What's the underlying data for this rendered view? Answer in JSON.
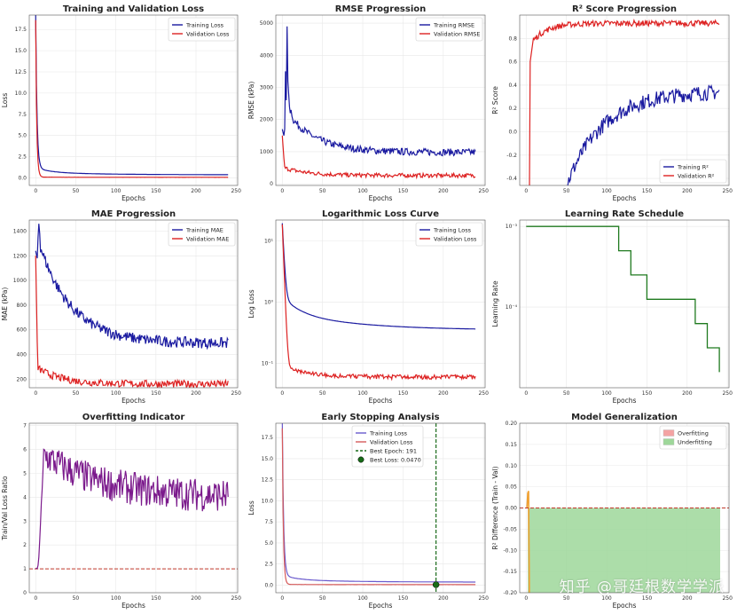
{
  "colors": {
    "train": "#1a1aa0",
    "val": "#dd2222",
    "purple": "#7b1a8c",
    "green": "#1f7a1f",
    "dashed_red": "#c0392b",
    "dashed_green": "#1a6b1a",
    "fill_green": "#9ed79a",
    "fill_red": "#f4a3a3",
    "orange": "#f0a030"
  },
  "watermark": "知乎 @哥廷根数学学派",
  "chart_data": [
    {
      "id": "loss",
      "type": "line",
      "title": "Training and Validation Loss",
      "xlabel": "Epochs",
      "ylabel": "Loss",
      "xlim": [
        -8,
        252
      ],
      "ylim": [
        -0.9,
        19.2
      ],
      "xticks": [
        0,
        50,
        100,
        150,
        200,
        250
      ],
      "yticks": [
        0.0,
        2.5,
        5.0,
        7.5,
        10.0,
        12.5,
        15.0,
        17.5
      ],
      "ytick_fmt": 1,
      "legend": "top-right",
      "series": [
        {
          "name": "Training Loss",
          "profile": "train_loss"
        },
        {
          "name": "Validation Loss",
          "profile": "val_loss"
        }
      ]
    },
    {
      "id": "rmse",
      "type": "line",
      "title": "RMSE Progression",
      "xlabel": "Epochs",
      "ylabel": "RMSE (kPa)",
      "xlim": [
        -8,
        252
      ],
      "ylim": [
        -50,
        5250
      ],
      "xticks": [
        0,
        50,
        100,
        150,
        200,
        250
      ],
      "yticks": [
        0,
        1000,
        2000,
        3000,
        4000,
        5000
      ],
      "ytick_fmt": 0,
      "legend": "top-right",
      "series": [
        {
          "name": "Training RMSE",
          "profile": "train_rmse"
        },
        {
          "name": "Validation RMSE",
          "profile": "val_rmse"
        }
      ]
    },
    {
      "id": "r2",
      "type": "line",
      "title": "R² Score Progression",
      "xlabel": "Epochs",
      "ylabel": "R² Score",
      "xlim": [
        -8,
        252
      ],
      "ylim": [
        -0.46,
        1.0
      ],
      "xticks": [
        0,
        50,
        100,
        150,
        200,
        250
      ],
      "yticks": [
        -0.4,
        -0.2,
        0.0,
        0.2,
        0.4,
        0.6,
        0.8
      ],
      "ytick_fmt": 1,
      "legend": "bottom-right",
      "series": [
        {
          "name": "Training R²",
          "profile": "train_r2"
        },
        {
          "name": "Validation R²",
          "profile": "val_r2"
        }
      ]
    },
    {
      "id": "mae",
      "type": "line",
      "title": "MAE Progression",
      "xlabel": "Epochs",
      "ylabel": "MAE (kPa)",
      "xlim": [
        -8,
        252
      ],
      "ylim": [
        130,
        1490
      ],
      "xticks": [
        0,
        50,
        100,
        150,
        200,
        250
      ],
      "yticks": [
        200,
        400,
        600,
        800,
        1000,
        1200,
        1400
      ],
      "ytick_fmt": 0,
      "legend": "top-right",
      "series": [
        {
          "name": "Training MAE",
          "profile": "train_mae"
        },
        {
          "name": "Validation MAE",
          "profile": "val_mae"
        }
      ]
    },
    {
      "id": "logloss",
      "type": "line",
      "title": "Logarithmic Loss Curve",
      "xlabel": "Epochs",
      "ylabel": "Log Loss",
      "xlim": [
        -8,
        252
      ],
      "ylim": [
        0.04,
        22
      ],
      "yscale": "log",
      "xticks": [
        0,
        50,
        100,
        150,
        200,
        250
      ],
      "ytick_labels": [
        "10⁻¹",
        "10⁰",
        "10¹"
      ],
      "legend": "top-right",
      "series": [
        {
          "name": "Training Loss",
          "profile": "train_loss"
        },
        {
          "name": "Validation Loss",
          "profile": "val_loss"
        }
      ]
    },
    {
      "id": "lr",
      "type": "line",
      "title": "Learning Rate Schedule",
      "xlabel": "Epochs",
      "ylabel": "Learning Rate",
      "xlim": [
        -8,
        252
      ],
      "ylim": [
        1e-05,
        0.0012
      ],
      "yscale": "log",
      "xticks": [
        0,
        50,
        100,
        150,
        200,
        250
      ],
      "ytick_labels": [
        "10⁻⁴",
        "10⁻³"
      ],
      "legend": "none",
      "series": [
        {
          "name": "",
          "steps": [
            [
              0,
              0.001
            ],
            [
              115,
              0.001
            ],
            [
              115,
              0.0005
            ],
            [
              130,
              0.0005
            ],
            [
              130,
              0.00025
            ],
            [
              150,
              0.00025
            ],
            [
              150,
              0.000125
            ],
            [
              210,
              0.000125
            ],
            [
              210,
              6.25e-05
            ],
            [
              225,
              6.25e-05
            ],
            [
              225,
              3.125e-05
            ],
            [
              240,
              3.125e-05
            ],
            [
              240,
              1.56e-05
            ]
          ]
        }
      ]
    },
    {
      "id": "overfit",
      "type": "line",
      "title": "Overfitting Indicator",
      "xlabel": "Epochs",
      "ylabel": "Train/Val Loss Ratio",
      "xlim": [
        -8,
        252
      ],
      "ylim": [
        0,
        7.1
      ],
      "xticks": [
        0,
        50,
        100,
        150,
        200,
        250
      ],
      "yticks": [
        0,
        1,
        2,
        3,
        4,
        5,
        6,
        7
      ],
      "ytick_fmt": 0,
      "legend": "none",
      "hline": 1,
      "series": [
        {
          "name": "",
          "profile": "ratio"
        }
      ]
    },
    {
      "id": "early",
      "type": "line",
      "title": "Early Stopping Analysis",
      "xlabel": "Epochs",
      "ylabel": "Loss",
      "xlim": [
        -8,
        252
      ],
      "ylim": [
        -0.9,
        19.2
      ],
      "xticks": [
        0,
        50,
        100,
        150,
        200,
        250
      ],
      "yticks": [
        0.0,
        2.5,
        5.0,
        7.5,
        10.0,
        12.5,
        15.0,
        17.5
      ],
      "ytick_fmt": 1,
      "legend": "top-center",
      "vline": 191,
      "best_point": [
        191,
        0.047
      ],
      "series": [
        {
          "name": "Training Loss",
          "profile": "train_loss"
        },
        {
          "name": "Validation Loss",
          "profile": "val_loss"
        }
      ],
      "extra_legend": [
        "Best Epoch: 191",
        "Best Loss: 0.0470"
      ]
    },
    {
      "id": "gen",
      "type": "area",
      "title": "Model Generalization",
      "xlabel": "Epochs",
      "ylabel": "R² Difference (Train - Val)",
      "xlim": [
        -8,
        252
      ],
      "ylim": [
        -0.2,
        0.2
      ],
      "xticks": [
        0,
        50,
        100,
        150,
        200,
        250
      ],
      "yticks": [
        -0.2,
        -0.15,
        -0.1,
        -0.05,
        0.0,
        0.05,
        0.1,
        0.15,
        0.2
      ],
      "ytick_fmt": 2,
      "legend": "top-right",
      "hline": 0,
      "series": [
        {
          "name": "Overfitting"
        },
        {
          "name": "Underfitting"
        }
      ]
    }
  ]
}
